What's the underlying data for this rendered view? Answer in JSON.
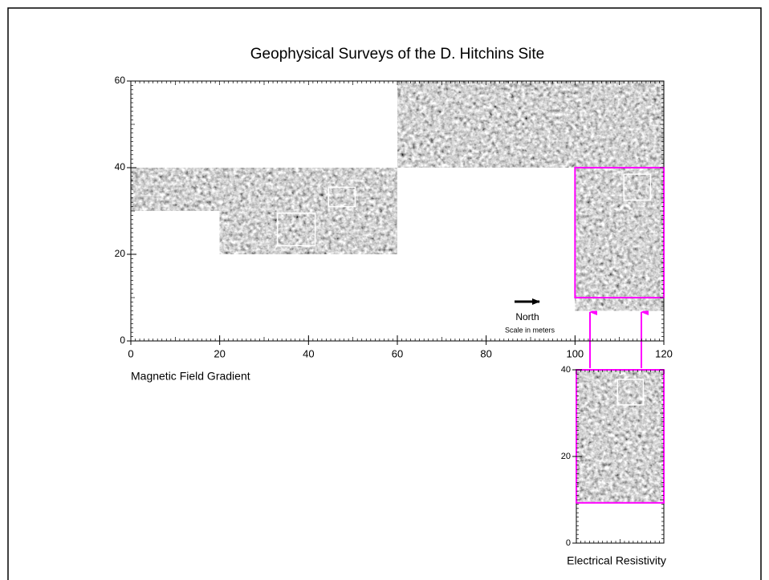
{
  "chart_data": [
    {
      "type": "raster-map",
      "title": "Geophysical Surveys of the D. Hitchins Site",
      "xlabel": "Magnetic Field Gradient",
      "xlim": [
        0,
        120
      ],
      "ylim": [
        0,
        60
      ],
      "xticks": [
        0,
        20,
        40,
        60,
        80,
        100,
        120
      ],
      "yticks": [
        0,
        20,
        40,
        60
      ],
      "surveys": [
        {
          "x": [
            0,
            20
          ],
          "y": [
            30,
            40
          ]
        },
        {
          "x": [
            20,
            60
          ],
          "y": [
            20,
            40
          ]
        },
        {
          "x": [
            60,
            120
          ],
          "y": [
            40,
            60
          ]
        },
        {
          "x": [
            100,
            120
          ],
          "y": [
            7,
            40
          ]
        }
      ],
      "highlight": {
        "x": [
          100,
          120
        ],
        "y": [
          10,
          40
        ],
        "color": "#ff00ff"
      },
      "boxes": [
        {
          "x": [
            33,
            41.5
          ],
          "y": [
            22,
            29.5
          ]
        },
        {
          "x": [
            44.5,
            50.5
          ],
          "y": [
            31,
            35.5
          ]
        },
        {
          "x": [
            111,
            117
          ],
          "y": [
            32.5,
            38.5
          ]
        }
      ],
      "annotations": [
        "North",
        "Scale in meters"
      ]
    },
    {
      "type": "raster-map",
      "xlabel": "Electrical Resistivity",
      "xlim": [
        100,
        120
      ],
      "ylim": [
        0,
        40
      ],
      "yticks": [
        0,
        20,
        40
      ],
      "surveys": [
        {
          "x": [
            100,
            120
          ],
          "y": [
            9.3,
            40
          ]
        }
      ],
      "highlight": {
        "x": [
          100,
          120
        ],
        "y": [
          9.3,
          40
        ],
        "color": "#ff00ff"
      },
      "boxes": [
        {
          "x": [
            109.4,
            115.3
          ],
          "y": [
            31.9,
            37.8
          ]
        }
      ]
    }
  ]
}
